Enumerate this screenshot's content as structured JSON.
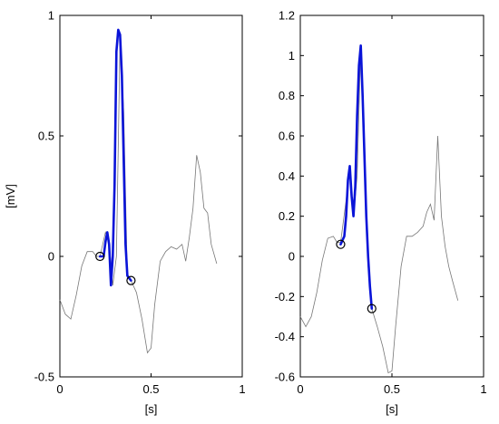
{
  "chart_data": [
    {
      "type": "line",
      "xlabel": "[s]",
      "ylabel": "[mV]",
      "xlim": [
        0,
        1
      ],
      "ylim": [
        -0.5,
        1
      ],
      "xticks": [
        0,
        0.5,
        1
      ],
      "xtick_labels": [
        "0",
        "0.5",
        "1"
      ],
      "yticks": [
        -0.5,
        0,
        0.5,
        1
      ],
      "ytick_labels": [
        "-0.5",
        "0",
        "0.5",
        "1"
      ],
      "grid": false,
      "colors": {
        "signal": "#777777",
        "segment": "#0a14d8",
        "markers": "#000000"
      },
      "series": [
        {
          "x": [
            0.0,
            0.03,
            0.06,
            0.09,
            0.12,
            0.15,
            0.18,
            0.2,
            0.22,
            0.25,
            0.27,
            0.29,
            0.31,
            0.33,
            0.35,
            0.37,
            0.39,
            0.42,
            0.45,
            0.48,
            0.5,
            0.52,
            0.55,
            0.58,
            0.61,
            0.64,
            0.67,
            0.69,
            0.71,
            0.73,
            0.75,
            0.77,
            0.79,
            0.81,
            0.83,
            0.86
          ],
          "y": [
            -0.18,
            -0.24,
            -0.26,
            -0.16,
            -0.04,
            0.02,
            0.02,
            0.0,
            0.0,
            0.1,
            0.06,
            -0.12,
            0.0,
            0.9,
            0.6,
            -0.09,
            -0.1,
            -0.15,
            -0.26,
            -0.4,
            -0.38,
            -0.2,
            -0.02,
            0.02,
            0.04,
            0.03,
            0.05,
            -0.02,
            0.08,
            0.2,
            0.42,
            0.35,
            0.2,
            0.18,
            0.05,
            -0.03
          ]
        },
        {
          "x": [
            0.22,
            0.24,
            0.25,
            0.26,
            0.27,
            0.28,
            0.29,
            0.3,
            0.31,
            0.32,
            0.33,
            0.34,
            0.35,
            0.36,
            0.37,
            0.38,
            0.39
          ],
          "y": [
            0.0,
            0.0,
            0.06,
            0.1,
            0.05,
            -0.12,
            0.0,
            0.3,
            0.85,
            0.94,
            0.92,
            0.75,
            0.4,
            0.05,
            -0.08,
            -0.09,
            -0.1
          ]
        }
      ],
      "markers": [
        {
          "x": 0.22,
          "y": 0.0
        },
        {
          "x": 0.39,
          "y": -0.1
        }
      ]
    },
    {
      "type": "line",
      "xlabel": "[s]",
      "ylabel": "",
      "xlim": [
        0,
        1
      ],
      "ylim": [
        -0.6,
        1.2
      ],
      "xticks": [
        0,
        0.5,
        1
      ],
      "xtick_labels": [
        "0",
        "0.5",
        "1"
      ],
      "yticks": [
        -0.6,
        -0.4,
        -0.2,
        0,
        0.2,
        0.4,
        0.6,
        0.8,
        1,
        1.2
      ],
      "ytick_labels": [
        "-0.6",
        "-0.4",
        "-0.2",
        "0",
        "0.2",
        "0.4",
        "0.6",
        "0.8",
        "1",
        "1.2"
      ],
      "grid": false,
      "colors": {
        "signal": "#777777",
        "segment": "#0a14d8",
        "markers": "#000000"
      },
      "series": [
        {
          "x": [
            0.0,
            0.03,
            0.06,
            0.09,
            0.12,
            0.15,
            0.18,
            0.2,
            0.22,
            0.25,
            0.27,
            0.29,
            0.31,
            0.33,
            0.35,
            0.37,
            0.39,
            0.42,
            0.45,
            0.48,
            0.5,
            0.52,
            0.55,
            0.58,
            0.61,
            0.64,
            0.67,
            0.69,
            0.71,
            0.73,
            0.75,
            0.77,
            0.79,
            0.81,
            0.83,
            0.86
          ],
          "y": [
            -0.3,
            -0.35,
            -0.3,
            -0.18,
            -0.02,
            0.09,
            0.1,
            0.07,
            0.07,
            0.28,
            0.45,
            0.2,
            0.4,
            1.05,
            0.55,
            -0.05,
            -0.26,
            -0.35,
            -0.45,
            -0.58,
            -0.57,
            -0.35,
            -0.05,
            0.1,
            0.1,
            0.12,
            0.15,
            0.22,
            0.26,
            0.18,
            0.6,
            0.2,
            0.05,
            -0.05,
            -0.12,
            -0.22
          ]
        },
        {
          "x": [
            0.22,
            0.24,
            0.25,
            0.26,
            0.27,
            0.28,
            0.29,
            0.3,
            0.31,
            0.32,
            0.33,
            0.34,
            0.35,
            0.36,
            0.37,
            0.38,
            0.39
          ],
          "y": [
            0.06,
            0.1,
            0.2,
            0.38,
            0.45,
            0.3,
            0.2,
            0.35,
            0.7,
            0.95,
            1.05,
            0.8,
            0.5,
            0.2,
            0.0,
            -0.15,
            -0.26
          ]
        }
      ],
      "markers": [
        {
          "x": 0.22,
          "y": 0.06
        },
        {
          "x": 0.39,
          "y": -0.26
        }
      ]
    }
  ]
}
